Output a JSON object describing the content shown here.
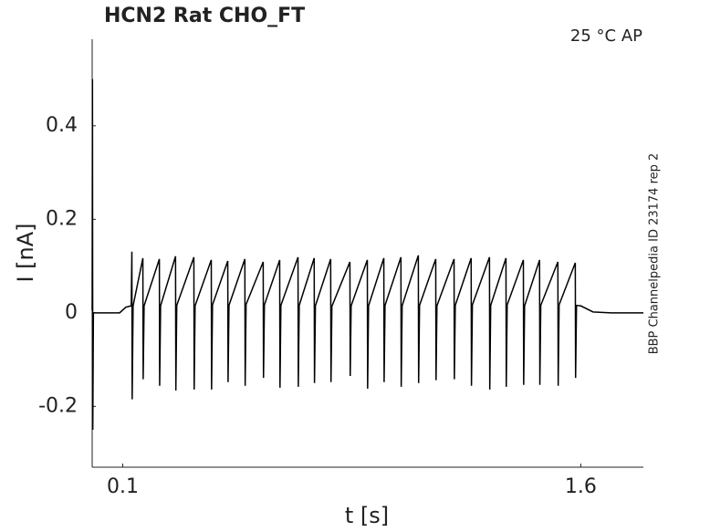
{
  "chart_data": {
    "type": "line",
    "title": "HCN2  Rat  CHO_FT",
    "annotation": "25 °C  AP",
    "side_note": "BBP Channelpedia ID 23174 rep 2",
    "x_label": "t [s]",
    "y_label": "I [nA]",
    "x": [
      0,
      0.001,
      0.002,
      0.004,
      0.09,
      0.11,
      0.128,
      0.13,
      0.131,
      0.134,
      0.166,
      0.167,
      0.17,
      0.22,
      0.221,
      0.224,
      0.273,
      0.274,
      0.277,
      0.333,
      0.334,
      0.337,
      0.39,
      0.391,
      0.394,
      0.444,
      0.445,
      0.448,
      0.5,
      0.501,
      0.504,
      0.56,
      0.561,
      0.564,
      0.614,
      0.615,
      0.618,
      0.674,
      0.675,
      0.678,
      0.727,
      0.728,
      0.731,
      0.781,
      0.782,
      0.785,
      0.844,
      0.845,
      0.848,
      0.901,
      0.902,
      0.905,
      0.955,
      0.956,
      0.959,
      1.011,
      1.012,
      1.015,
      1.068,
      1.069,
      1.072,
      1.125,
      1.126,
      1.129,
      1.185,
      1.186,
      1.189,
      1.241,
      1.242,
      1.245,
      1.301,
      1.302,
      1.305,
      1.355,
      1.356,
      1.359,
      1.412,
      1.413,
      1.416,
      1.465,
      1.466,
      1.469,
      1.525,
      1.526,
      1.529,
      1.582,
      1.583,
      1.586,
      1.6,
      1.64,
      1.7,
      1.805
    ],
    "series": [
      {
        "color": "#000000",
        "values": [
          0.005,
          0.5,
          -0.25,
          0.0,
          0.0,
          0.012,
          0.015,
          0.131,
          -0.185,
          0.015,
          0.117,
          -0.142,
          0.015,
          0.115,
          -0.156,
          0.015,
          0.121,
          -0.166,
          0.016,
          0.119,
          -0.164,
          0.015,
          0.113,
          -0.164,
          0.017,
          0.111,
          -0.148,
          0.016,
          0.115,
          -0.156,
          0.018,
          0.109,
          -0.139,
          0.017,
          0.113,
          -0.16,
          0.016,
          0.119,
          -0.158,
          0.016,
          0.117,
          -0.15,
          0.015,
          0.115,
          -0.148,
          0.014,
          0.109,
          -0.135,
          0.015,
          0.113,
          -0.162,
          0.015,
          0.117,
          -0.148,
          0.016,
          0.119,
          -0.158,
          0.015,
          0.123,
          -0.15,
          0.016,
          0.115,
          -0.144,
          0.015,
          0.115,
          -0.142,
          0.016,
          0.117,
          -0.156,
          0.017,
          0.119,
          -0.164,
          0.016,
          0.117,
          -0.158,
          0.017,
          0.113,
          -0.154,
          0.015,
          0.113,
          -0.154,
          0.016,
          0.109,
          -0.156,
          0.017,
          0.107,
          -0.139,
          0.016,
          0.015,
          0.002,
          0.0,
          0.0
        ]
      }
    ],
    "xlim": [
      0,
      1.805
    ],
    "ylim": [
      -0.33,
      0.585
    ],
    "xticks": [
      0.1,
      1.6
    ],
    "yticks": [
      -0.2,
      0,
      0.2,
      0.4
    ]
  }
}
